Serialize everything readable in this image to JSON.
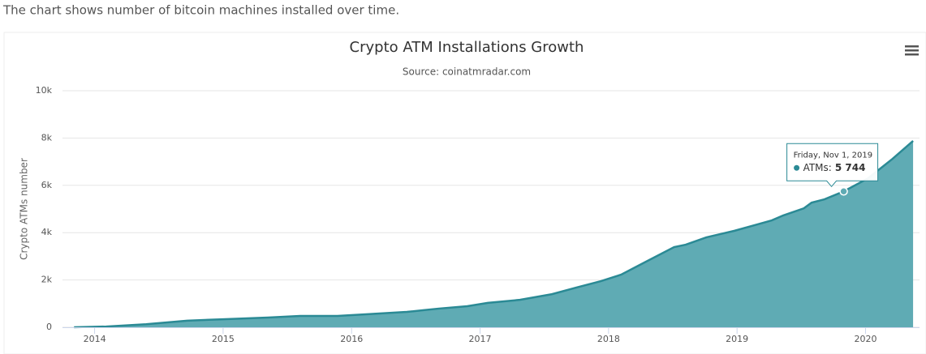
{
  "intro": "The chart shows number of bitcoin machines installed over time.",
  "chart_data": {
    "type": "area",
    "title": "Crypto ATM Installations Growth",
    "subtitle": "Source: coinatmradar.com",
    "y_label": "Crypto ATMs number",
    "x": [
      2013.84,
      2014.09,
      2014.4,
      2014.72,
      2015.0,
      2015.35,
      2015.6,
      2015.89,
      2016.11,
      2016.43,
      2016.68,
      2016.9,
      2017.06,
      2017.31,
      2017.56,
      2017.75,
      2017.94,
      2018.1,
      2018.29,
      2018.51,
      2018.6,
      2018.76,
      2018.98,
      2019.14,
      2019.27,
      2019.36,
      2019.52,
      2019.58,
      2019.68,
      2019.83,
      2020.02,
      2020.21,
      2020.37
    ],
    "values": [
      0,
      30,
      130,
      280,
      340,
      410,
      480,
      480,
      550,
      650,
      790,
      890,
      1030,
      1160,
      1400,
      1680,
      1950,
      2230,
      2770,
      3390,
      3490,
      3800,
      4080,
      4320,
      4520,
      4730,
      5030,
      5270,
      5410,
      5744,
      6300,
      7120,
      7880
    ],
    "color": "#2b8a95",
    "fill": "#5fabb4",
    "xlim": [
      2013.75,
      2020.42
    ],
    "xticks": [
      2014,
      2015,
      2016,
      2017,
      2018,
      2019,
      2020
    ],
    "ylim": [
      0,
      10000
    ],
    "yticks": [
      0,
      {
        "value": 2000,
        "label": "2k"
      },
      {
        "value": 4000,
        "label": "4k"
      },
      {
        "value": 6000,
        "label": "6k"
      },
      {
        "value": 8000,
        "label": "8k"
      },
      {
        "value": 10000,
        "label": "10k"
      }
    ],
    "grid": true,
    "tooltip": {
      "date": "Friday, Nov 1, 2019",
      "label": "ATMs:",
      "value": 5744,
      "value_label": "5 744"
    }
  }
}
